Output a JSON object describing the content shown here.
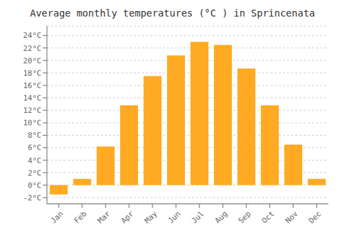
{
  "chart_data": {
    "type": "bar",
    "title": "Average monthly temperatures (°C ) in Sprincenata",
    "categories": [
      "Jan",
      "Feb",
      "Mar",
      "Apr",
      "May",
      "Jun",
      "Jul",
      "Aug",
      "Sep",
      "Oct",
      "Nov",
      "Dec"
    ],
    "values": [
      -1.5,
      1.0,
      6.2,
      12.8,
      17.5,
      20.8,
      23.0,
      22.5,
      18.7,
      12.8,
      6.5,
      1.0
    ],
    "color": "#FFAA22",
    "ylim": [
      -3,
      25.5
    ],
    "yticks": [
      {
        "value": -2,
        "label": "-2°C"
      },
      {
        "value": 0,
        "label": "0°C"
      },
      {
        "value": 2,
        "label": "2°C"
      },
      {
        "value": 4,
        "label": "4°C"
      },
      {
        "value": 6,
        "label": "6°C"
      },
      {
        "value": 8,
        "label": "8°C"
      },
      {
        "value": 10,
        "label": "10°C"
      },
      {
        "value": 12,
        "label": "12°C"
      },
      {
        "value": 14,
        "label": "14°C"
      },
      {
        "value": 16,
        "label": "16°C"
      },
      {
        "value": 18,
        "label": "18°C"
      },
      {
        "value": 20,
        "label": "20°C"
      },
      {
        "value": 22,
        "label": "22°C"
      },
      {
        "value": 24,
        "label": "24°C"
      }
    ],
    "grid": true
  }
}
